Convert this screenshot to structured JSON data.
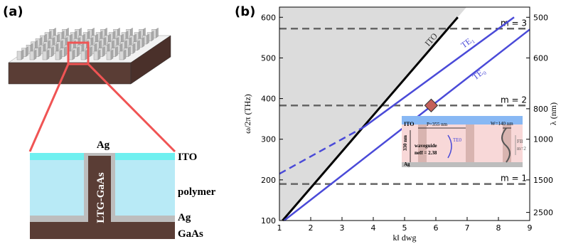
{
  "panel_a": {
    "label": "(a)",
    "ag_top": "Ag",
    "ito": "ITO",
    "polymer": "polymer",
    "ag_bottom": "Ag",
    "gaas": "GaAs",
    "pillar": "LTG-GaAs"
  },
  "chart_data": {
    "type": "line",
    "panel_label": "(b)",
    "xlabel": "k‖ dwg",
    "ylabel": "ω/2π (THz)",
    "y2label": "λ (nm)",
    "xlim": [
      1,
      9
    ],
    "xticks": [
      1,
      2,
      3,
      4,
      5,
      6,
      7,
      8,
      9
    ],
    "ylim": [
      100,
      625
    ],
    "yticks": [
      100,
      200,
      300,
      400,
      500,
      600
    ],
    "y2lim": [
      2998,
      480
    ],
    "y2ticks": [
      500,
      600,
      800,
      1000,
      1500,
      2500
    ],
    "shade_left_of_first": true,
    "series": [
      {
        "name": "ITO",
        "color": "#000000",
        "x": [
          1.1,
          6.7
        ],
        "values": [
          100,
          600
        ]
      },
      {
        "name": "TE₁",
        "color": "#4a4ad8",
        "x": [
          3.7,
          8.5
        ],
        "values": [
          330,
          600
        ]
      },
      {
        "color": "#4a4ad8",
        "dashed": true,
        "x": [
          1,
          3.7
        ],
        "values": [
          215,
          330
        ]
      },
      {
        "name": "TE₀",
        "color": "#4a4ad8",
        "x": [
          1.15,
          9
        ],
        "values": [
          100,
          570
        ]
      }
    ],
    "hlines": [
      {
        "value": 572,
        "label": "m = 3"
      },
      {
        "value": 383,
        "label": "m = 2"
      },
      {
        "value": 190,
        "label": "m = 1"
      }
    ],
    "marker": {
      "x": 5.85,
      "y": 383,
      "color": "#c4605a"
    }
  },
  "inset": {
    "ito": "ITO",
    "period": "P=355 nm",
    "width": "W=140 nm",
    "height": "330 nm",
    "waveguide": "waveguide",
    "neff": "neff = 2.38",
    "te0": "TE0",
    "fb": "FB",
    "fb_m": "m=2",
    "ag": "Ag"
  }
}
